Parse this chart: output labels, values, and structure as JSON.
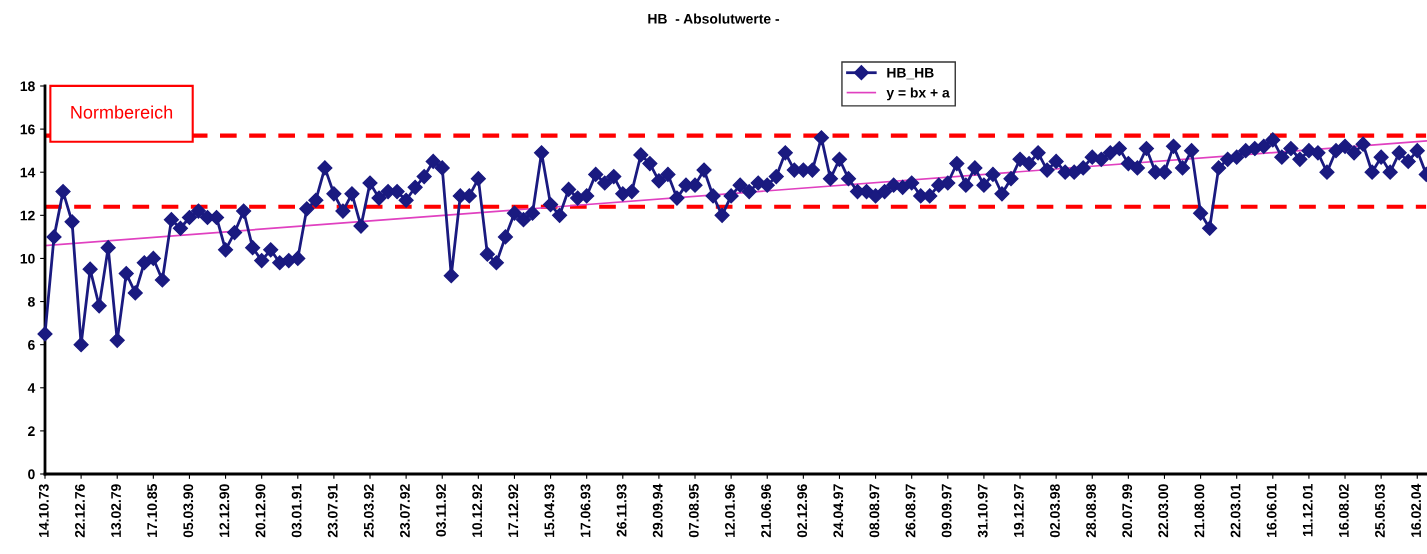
{
  "chart_data": {
    "type": "line",
    "title": "HB  - Absolutwerte -",
    "categories": [
      "14.10.73",
      null,
      null,
      null,
      "22.12.76",
      null,
      null,
      null,
      "13.02.79",
      null,
      null,
      null,
      "17.10.85",
      null,
      null,
      null,
      "05.03.90",
      null,
      null,
      null,
      "12.12.90",
      null,
      null,
      null,
      "20.12.90",
      null,
      null,
      null,
      "03.01.91",
      null,
      null,
      null,
      "23.07.91",
      null,
      null,
      null,
      "25.03.92",
      null,
      null,
      null,
      "23.07.92",
      null,
      null,
      null,
      "03.11.92",
      null,
      null,
      null,
      "10.12.92",
      null,
      null,
      null,
      "17.12.92",
      null,
      null,
      null,
      "15.04.93",
      null,
      null,
      null,
      "17.06.93",
      null,
      null,
      null,
      "26.11.93",
      null,
      null,
      null,
      "29.09.94",
      null,
      null,
      null,
      "07.08.95",
      null,
      null,
      null,
      "12.01.96",
      null,
      null,
      null,
      "21.06.96",
      null,
      null,
      null,
      "02.12.96",
      null,
      null,
      null,
      "24.04.97",
      null,
      null,
      null,
      "08.08.97",
      null,
      null,
      null,
      "26.08.97",
      null,
      null,
      null,
      "09.09.97",
      null,
      null,
      null,
      "31.10.97",
      null,
      null,
      null,
      "19.12.97",
      null,
      null,
      null,
      "02.03.98",
      null,
      null,
      null,
      "28.08.98",
      null,
      null,
      null,
      "20.07.99",
      null,
      null,
      null,
      "22.03.00",
      null,
      null,
      null,
      "21.08.00",
      null,
      null,
      null,
      "22.03.01",
      null,
      null,
      null,
      "16.06.01",
      null,
      null,
      null,
      "11.12.01",
      null,
      null,
      null,
      "16.08.02",
      null,
      null,
      null,
      "25.05.03",
      null,
      null,
      null,
      "16.02.04",
      null
    ],
    "series": [
      {
        "name": "HB_HB",
        "color": "#1a1a80",
        "marker": "diamond",
        "values": [
          6.5,
          11.0,
          13.1,
          11.7,
          6.0,
          9.5,
          7.8,
          10.5,
          6.2,
          9.3,
          8.4,
          9.8,
          10.0,
          9.0,
          11.8,
          11.4,
          11.9,
          12.2,
          11.9,
          11.9,
          10.4,
          11.2,
          12.2,
          10.5,
          9.9,
          10.4,
          9.8,
          9.9,
          10.0,
          12.3,
          12.7,
          14.2,
          13.0,
          12.2,
          13.0,
          11.5,
          13.5,
          12.8,
          13.1,
          13.1,
          12.7,
          13.3,
          13.8,
          14.5,
          14.2,
          9.2,
          12.9,
          12.9,
          13.7,
          10.2,
          9.8,
          11.0,
          12.1,
          11.8,
          12.1,
          14.9,
          12.5,
          12.0,
          13.2,
          12.8,
          12.9,
          13.9,
          13.5,
          13.8,
          13.0,
          13.1,
          14.8,
          14.4,
          13.6,
          13.9,
          12.8,
          13.4,
          13.4,
          14.1,
          12.9,
          12.0,
          12.9,
          13.4,
          13.1,
          13.5,
          13.4,
          13.8,
          14.9,
          14.1,
          14.1,
          14.1,
          15.6,
          13.7,
          14.6,
          13.7,
          13.1,
          13.1,
          12.9,
          13.1,
          13.4,
          13.3,
          13.5,
          12.9,
          12.9,
          13.4,
          13.5,
          14.4,
          13.4,
          14.2,
          13.4,
          13.9,
          13.0,
          13.7,
          14.6,
          14.4,
          14.9,
          14.1,
          14.5,
          14.0,
          14.0,
          14.2,
          14.7,
          14.6,
          14.9,
          15.1,
          14.4,
          14.2,
          15.1,
          14.0,
          14.0,
          15.2,
          14.2,
          15.0,
          12.1,
          11.4,
          14.2,
          14.6,
          14.7,
          15.0,
          15.1,
          15.2,
          15.5,
          14.7,
          15.1,
          14.6,
          15.0,
          14.9,
          14.0,
          15.0,
          15.2,
          14.9,
          15.3,
          14.0,
          14.7,
          14.0,
          14.9,
          14.5,
          15.0,
          13.9
        ]
      },
      {
        "name": "y = bx + a",
        "color": "#e040c0",
        "marker": "none",
        "values": [
          10.6,
          null,
          null,
          null,
          null,
          null,
          null,
          null,
          null,
          null,
          null,
          null,
          null,
          null,
          null,
          null,
          null,
          null,
          null,
          null,
          null,
          null,
          null,
          null,
          null,
          null,
          null,
          null,
          null,
          null,
          null,
          null,
          null,
          null,
          null,
          null,
          null,
          null,
          null,
          null,
          null,
          null,
          null,
          null,
          null,
          null,
          null,
          null,
          null,
          null,
          null,
          null,
          null,
          null,
          null,
          null,
          null,
          null,
          null,
          null,
          null,
          null,
          null,
          null,
          null,
          null,
          null,
          null,
          null,
          null,
          null,
          null,
          null,
          null,
          null,
          null,
          null,
          null,
          null,
          null,
          null,
          null,
          null,
          null,
          null,
          null,
          null,
          null,
          null,
          null,
          null,
          null,
          null,
          null,
          null,
          null,
          null,
          null,
          null,
          null,
          null,
          null,
          null,
          null,
          null,
          null,
          null,
          null,
          null,
          null,
          null,
          null,
          null,
          null,
          null,
          null,
          null,
          null,
          null,
          null,
          null,
          null,
          null,
          null,
          null,
          null,
          null,
          null,
          null,
          null,
          null,
          null,
          null,
          null,
          null,
          null,
          null,
          null,
          null,
          null,
          null,
          null,
          null,
          null,
          null,
          null,
          null,
          null,
          null,
          null,
          null,
          null,
          null,
          15.45
        ]
      }
    ],
    "ylim": [
      0,
      18
    ],
    "yticks": [
      0,
      2,
      4,
      6,
      8,
      10,
      12,
      14,
      16,
      18
    ],
    "ref_lines": [
      {
        "axis": "y",
        "value": 15.7,
        "color": "#ff0000",
        "line_style": "dashed"
      },
      {
        "axis": "y",
        "value": 12.4,
        "color": "#ff0000",
        "line_style": "dashed"
      }
    ],
    "annotations": [
      "Normbereich"
    ],
    "legend": "top",
    "grid": false
  }
}
